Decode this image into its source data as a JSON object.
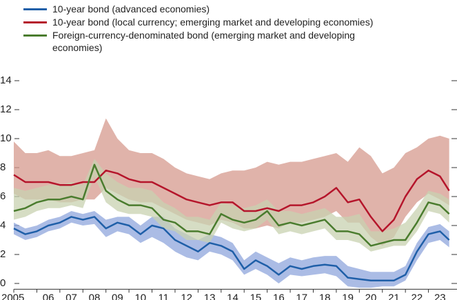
{
  "chart_data": {
    "type": "line",
    "x": [
      2005.0,
      2005.5,
      2006.0,
      2006.5,
      2007.0,
      2007.5,
      2008.0,
      2008.5,
      2009.0,
      2009.5,
      2010.0,
      2010.5,
      2011.0,
      2011.5,
      2012.0,
      2012.5,
      2013.0,
      2013.5,
      2014.0,
      2014.5,
      2015.0,
      2015.5,
      2016.0,
      2016.5,
      2017.0,
      2017.5,
      2018.0,
      2018.5,
      2019.0,
      2019.5,
      2020.0,
      2020.5,
      2021.0,
      2021.5,
      2022.0,
      2022.5,
      2023.0,
      2023.5,
      2023.9
    ],
    "xlim": [
      2005,
      2024
    ],
    "xticks": [
      {
        "value": 2005,
        "label": "2005"
      },
      {
        "value": 2006,
        "label": "06"
      },
      {
        "value": 2007,
        "label": "07"
      },
      {
        "value": 2008,
        "label": "08"
      },
      {
        "value": 2009,
        "label": "09"
      },
      {
        "value": 2010,
        "label": "10"
      },
      {
        "value": 2011,
        "label": "11"
      },
      {
        "value": 2012,
        "label": "12"
      },
      {
        "value": 2013,
        "label": "13"
      },
      {
        "value": 2014,
        "label": "14"
      },
      {
        "value": 2015,
        "label": "15"
      },
      {
        "value": 2016,
        "label": "16"
      },
      {
        "value": 2017,
        "label": "17"
      },
      {
        "value": 2018,
        "label": "18"
      },
      {
        "value": 2019,
        "label": "19"
      },
      {
        "value": 2020,
        "label": "20"
      },
      {
        "value": 2021,
        "label": "21"
      },
      {
        "value": 2022,
        "label": "22"
      },
      {
        "value": 2023,
        "label": "23"
      }
    ],
    "ylim": [
      -0.4,
      14
    ],
    "yticks": [
      0,
      2,
      4,
      6,
      8,
      10,
      12,
      14
    ],
    "series": [
      {
        "name": "10-year bond (advanced economies)",
        "color": "#1f5fa8",
        "band_color": "#8fa6dc",
        "values": [
          3.8,
          3.4,
          3.6,
          4.0,
          4.2,
          4.6,
          4.4,
          4.6,
          3.8,
          4.2,
          4.0,
          3.4,
          4.0,
          3.8,
          3.0,
          2.6,
          2.2,
          2.8,
          2.6,
          2.2,
          1.0,
          1.6,
          1.2,
          0.6,
          1.2,
          1.0,
          1.2,
          1.3,
          1.2,
          0.4,
          0.3,
          0.2,
          0.2,
          0.2,
          0.6,
          2.2,
          3.4,
          3.6,
          3.0
        ],
        "lower": [
          3.4,
          3.0,
          3.2,
          3.6,
          3.8,
          4.2,
          4.0,
          4.1,
          3.2,
          3.6,
          3.4,
          2.8,
          3.2,
          2.8,
          2.2,
          1.8,
          1.6,
          2.2,
          2.0,
          1.6,
          0.6,
          1.0,
          0.6,
          0.0,
          0.6,
          0.5,
          0.6,
          0.7,
          0.5,
          -0.2,
          -0.3,
          -0.3,
          -0.2,
          -0.2,
          0.2,
          1.6,
          2.8,
          3.0,
          2.5
        ],
        "upper": [
          4.2,
          3.8,
          4.0,
          4.4,
          4.6,
          5.0,
          4.8,
          5.0,
          4.4,
          4.6,
          4.6,
          4.0,
          4.6,
          4.6,
          3.8,
          3.4,
          3.0,
          3.4,
          3.2,
          2.8,
          1.6,
          2.2,
          1.8,
          1.4,
          1.8,
          1.6,
          1.8,
          1.9,
          1.9,
          1.2,
          1.0,
          0.8,
          0.8,
          0.8,
          1.2,
          2.8,
          3.9,
          4.1,
          3.6
        ]
      },
      {
        "name": "10-year bond (local currency; emerging market and developing economies)",
        "color": "#b5152b",
        "band_color": "#d69a8e",
        "values": [
          7.5,
          7.0,
          7.0,
          7.0,
          6.8,
          6.8,
          7.0,
          7.0,
          7.8,
          7.6,
          7.2,
          7.0,
          7.0,
          6.6,
          6.2,
          5.8,
          5.6,
          5.4,
          5.6,
          5.6,
          5.0,
          5.0,
          5.2,
          5.0,
          5.4,
          5.4,
          5.6,
          6.0,
          6.6,
          5.6,
          5.8,
          4.6,
          3.6,
          4.4,
          6.0,
          7.2,
          7.8,
          7.4,
          6.4
        ],
        "lower": [
          6.2,
          5.8,
          5.8,
          5.8,
          5.6,
          5.6,
          5.8,
          5.8,
          6.6,
          6.2,
          5.8,
          5.6,
          5.6,
          5.2,
          4.8,
          4.4,
          4.2,
          4.0,
          4.4,
          4.2,
          3.8,
          3.8,
          4.0,
          3.8,
          4.2,
          4.2,
          4.4,
          4.6,
          5.0,
          4.2,
          4.2,
          3.2,
          2.6,
          3.2,
          4.6,
          5.6,
          6.2,
          5.8,
          5.4
        ],
        "upper": [
          9.8,
          9.0,
          9.0,
          9.2,
          8.8,
          8.8,
          9.0,
          9.2,
          11.4,
          10.0,
          9.2,
          9.0,
          9.0,
          8.6,
          8.0,
          7.6,
          7.4,
          7.2,
          7.6,
          7.8,
          7.8,
          8.0,
          8.4,
          8.2,
          8.4,
          8.4,
          8.6,
          8.8,
          9.0,
          8.4,
          9.4,
          8.8,
          7.6,
          8.0,
          9.0,
          9.4,
          10.0,
          10.2,
          10.0
        ]
      },
      {
        "name": "Foreign-currency-denominated bond (emerging market and developing economies)",
        "color": "#4a7c2e",
        "band_color": "#c8d1b0",
        "values": [
          5.0,
          5.2,
          5.6,
          5.8,
          5.8,
          6.0,
          5.8,
          8.2,
          6.4,
          5.8,
          5.4,
          5.4,
          5.2,
          4.4,
          4.2,
          3.6,
          3.6,
          3.4,
          4.8,
          4.4,
          4.2,
          4.4,
          5.0,
          4.0,
          4.2,
          4.0,
          4.2,
          4.4,
          3.6,
          3.6,
          3.4,
          2.6,
          2.8,
          3.0,
          3.0,
          4.2,
          5.6,
          5.4,
          4.8
        ],
        "lower": [
          4.4,
          4.6,
          5.0,
          5.2,
          5.2,
          5.4,
          5.2,
          7.4,
          5.6,
          5.0,
          4.8,
          4.8,
          4.6,
          3.8,
          3.6,
          3.0,
          3.0,
          2.8,
          4.2,
          3.8,
          3.6,
          3.8,
          4.4,
          3.4,
          3.6,
          3.4,
          3.6,
          3.8,
          3.0,
          3.0,
          2.8,
          2.2,
          2.4,
          2.6,
          2.6,
          3.6,
          5.0,
          4.8,
          4.2
        ],
        "upper": [
          6.6,
          6.4,
          6.6,
          6.8,
          6.8,
          7.0,
          6.8,
          8.6,
          7.6,
          7.0,
          6.6,
          6.6,
          6.4,
          5.6,
          5.2,
          4.6,
          4.6,
          4.4,
          5.6,
          5.4,
          5.2,
          5.4,
          5.8,
          5.0,
          5.0,
          4.8,
          5.0,
          5.2,
          4.6,
          4.6,
          4.8,
          3.6,
          3.6,
          3.8,
          4.2,
          5.2,
          6.4,
          6.2,
          5.8
        ]
      }
    ]
  }
}
